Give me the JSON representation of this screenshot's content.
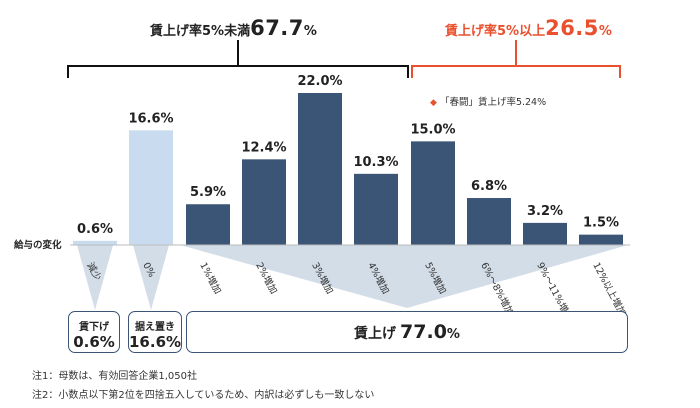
{
  "headline": {
    "under5": {
      "label": "賃上げ率5%未満",
      "value": "67.7",
      "unit": "%"
    },
    "over5": {
      "label": "賃上げ率5%以上",
      "value": "26.5",
      "unit": "%"
    }
  },
  "legend": {
    "marker": "◆",
    "text": "「春闘」賃上げ率5.24%"
  },
  "axis_title": "給与の変化",
  "summary_boxes": [
    {
      "title": "賃下げ",
      "value": "0.6%"
    },
    {
      "title": "据え置き",
      "value": "16.6%"
    },
    {
      "title": "賃上げ",
      "value": "77.0",
      "unit": "%"
    }
  ],
  "notes": [
    "注1：母数は、有効回答企業1,050社",
    "注2：小数点以下第2位を四捨五入しているため、内訳は必ずしも一致しない"
  ],
  "colors": {
    "bar": "#3b5577",
    "bar_zero": "#c9dcef",
    "bar_decrease": "#c9dcef",
    "accent": "#e8502e",
    "funnel": "#9eaec2",
    "funnel_light": "#d3dde8"
  },
  "chart_data": {
    "type": "bar",
    "categories": [
      "減少",
      "0%",
      "1%増加",
      "2%増加",
      "3%増加",
      "4%増加",
      "5%増加",
      "6%～8%増加",
      "9%～11%増加",
      "12%以上増加"
    ],
    "values": [
      0.6,
      16.6,
      5.9,
      12.4,
      22.0,
      10.3,
      15.0,
      6.8,
      3.2,
      1.5
    ],
    "value_labels": [
      "0.6%",
      "16.6%",
      "5.9%",
      "12.4%",
      "22.0%",
      "10.3%",
      "15.0%",
      "6.8%",
      "3.2%",
      "1.5%"
    ],
    "ylim": [
      0,
      22.0
    ],
    "xlabel": "給与の変化",
    "ylabel": "",
    "grid": false
  }
}
